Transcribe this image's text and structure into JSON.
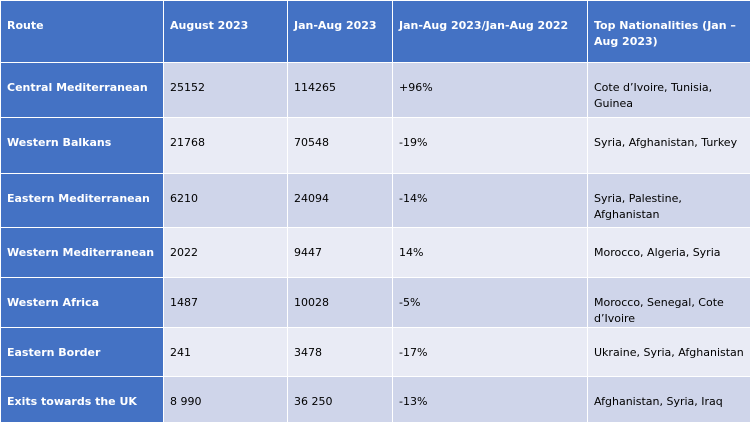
{
  "table": {
    "header": [
      "Route",
      "August 2023",
      "Jan-Aug 2023",
      "Jan-Aug 2023/Jan-Aug 2022",
      "Top Nationalities (Jan – Aug 2023)"
    ],
    "rows": [
      [
        "Central Mediterranean",
        "25152",
        "114265",
        "+96%",
        "Cote d’Ivoire, Tunisia, Guinea"
      ],
      [
        "Western Balkans",
        "21768",
        "70548",
        "-19%",
        "Syria, Afghanistan, Turkey"
      ],
      [
        "Eastern Mediterranean",
        "6210",
        "24094",
        "-14%",
        "Syria, Palestine, Afghanistan"
      ],
      [
        "Western Mediterranean",
        "2022",
        "9447",
        "14%",
        "Morocco, Algeria, Syria"
      ],
      [
        "Western Africa",
        "1487",
        "10028",
        "-5%",
        "Morocco, Senegal, Cote d’Ivoire"
      ],
      [
        "Eastern Border",
        "241",
        "3478",
        "-17%",
        "Ukraine, Syria, Afghanistan"
      ],
      [
        "Exits towards the UK",
        "8 990",
        "36 250",
        "-13%",
        "Afghanistan, Syria, Iraq"
      ]
    ]
  }
}
